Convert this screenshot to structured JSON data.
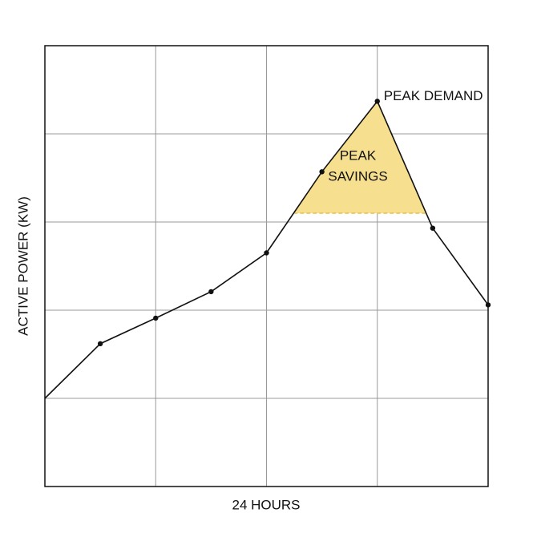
{
  "chart_data": {
    "type": "line",
    "x_label": "24 HOURS",
    "y_label": "ACTIVE POWER (KW)",
    "peak_label": "PEAK DEMAND",
    "savings_label": [
      "PEAK",
      "SAVINGS"
    ],
    "x": [
      0,
      1,
      2,
      3,
      4,
      5,
      6,
      7,
      8
    ],
    "series": [
      {
        "color": "#111111",
        "values": [
          1.0,
          1.62,
          1.91,
          2.21,
          2.65,
          3.57,
          4.37,
          2.93,
          2.06
        ]
      }
    ],
    "threshold": 3.1,
    "savings_color": "#f6df8e",
    "threshold_color": "#e8c14a",
    "xlim": [
      0,
      8
    ],
    "ylim": [
      0,
      5
    ],
    "xticks": [
      0,
      2,
      4,
      6,
      8
    ],
    "yticks": [
      0,
      1,
      2,
      3,
      4,
      5
    ],
    "grid": true
  }
}
